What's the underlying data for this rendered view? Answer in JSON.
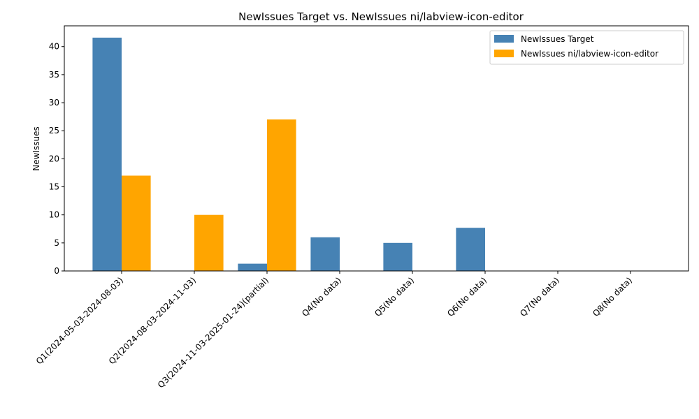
{
  "chart_data": {
    "type": "bar",
    "title": "NewIssues Target vs. NewIssues ni/labview-icon-editor",
    "xlabel": "",
    "ylabel": "NewIssues",
    "ylim": [
      0,
      43.7
    ],
    "yticks": [
      0,
      5,
      10,
      15,
      20,
      25,
      30,
      35,
      40
    ],
    "grid": false,
    "legend_position": "top-right",
    "categories": [
      "Q1(2024-05-03-2024-08-03)",
      "Q2(2024-08-03-2024-11-03)",
      "Q3(2024-11-03-2025-01-24)(partial)",
      "Q4(No data)",
      "Q5(No data)",
      "Q6(No data)",
      "Q7(No data)",
      "Q8(No data)"
    ],
    "series": [
      {
        "name": "NewIssues Target",
        "color": "#4682b4",
        "values": [
          41.6,
          0,
          1.3,
          6.0,
          5.0,
          7.7,
          0,
          0
        ]
      },
      {
        "name": "NewIssues ni/labview-icon-editor",
        "color": "#ffa500",
        "values": [
          17,
          10,
          27,
          0,
          0,
          0,
          0,
          0
        ]
      }
    ]
  }
}
